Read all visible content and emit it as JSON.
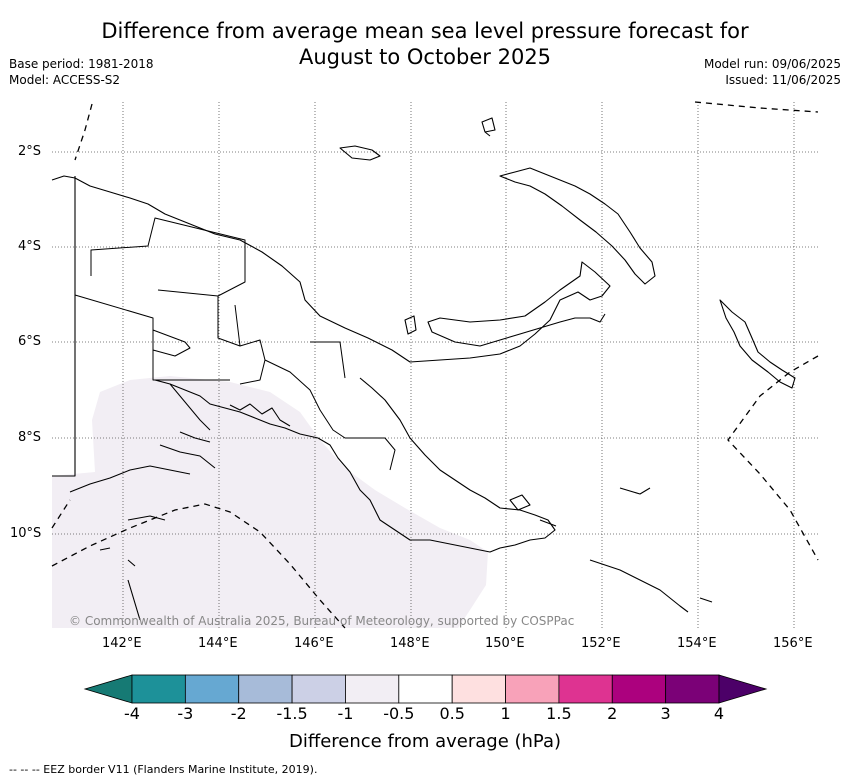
{
  "title_line1": "Difference from average mean sea level pressure forecast for",
  "title_line2": "August to October 2025",
  "meta_left": [
    "Base period: 1981-2018",
    "Model: ACCESS-S2"
  ],
  "meta_right": [
    "Model run: 09/06/2025",
    "Issued: 11/06/2025"
  ],
  "lat_labels": [
    "2°S",
    "4°S",
    "6°S",
    "8°S",
    "10°S"
  ],
  "lon_labels": [
    "142°E",
    "144°E",
    "146°E",
    "148°E",
    "150°E",
    "152°E",
    "154°E",
    "156°E"
  ],
  "map_extent": {
    "lon_min": 140.5,
    "lon_max": 156.5,
    "lat_min": -12.0,
    "lat_max": -1.0
  },
  "copyright": "© Commonwealth of Australia 2025, Bureau of Meteorology, supported by COSPPac",
  "colorbar": {
    "title": "Difference from average (hPa)",
    "ticks": [
      "-4",
      "-3",
      "-2",
      "-1.5",
      "-1",
      "-0.5",
      "0.5",
      "1",
      "1.5",
      "2",
      "3",
      "4"
    ],
    "colors": [
      "#167a74",
      "#1d9199",
      "#66a8d2",
      "#a7bbd9",
      "#ccd0e6",
      "#f2eef4",
      "#ffffff",
      "#fee0e0",
      "#f8a2b9",
      "#de3391",
      "#ac017e",
      "#7b0177",
      "#4c0068"
    ]
  },
  "shading": {
    "value_range": "-1 to -0.5",
    "color": "#f2eef4"
  },
  "footnote": "--  --  -- EEZ border V11 (Flanders Marine Institute, 2019)."
}
